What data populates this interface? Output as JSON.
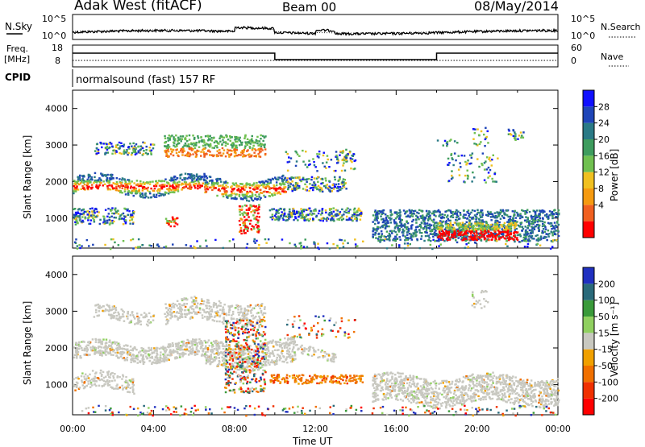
{
  "header": {
    "station": "Adak West (fitACF)",
    "beam": "Beam 00",
    "date": "08/May/2014"
  },
  "panels": {
    "nsky_label": "N.Sky",
    "nsearch_label": "N.Search",
    "freq_label": "Freq.",
    "freq_unit": "[MHz]",
    "nave_label": "Nave",
    "cpid_label": "CPID",
    "cpid_value": "normalsound (fast) 157 RF",
    "noise_ticks": [
      "10^5",
      "10^0"
    ],
    "noise_ticks_right": [
      "10^5",
      "10^0"
    ],
    "freq_ticks": [
      "18",
      "8"
    ],
    "nave_ticks": [
      "60",
      "0"
    ]
  },
  "chart_data": [
    {
      "type": "heatmap",
      "title": "",
      "xlabel": "",
      "ylabel": "Slant Range [km]",
      "xlim": [
        "00:00",
        "24:00"
      ],
      "ylim": [
        180,
        4500
      ],
      "colorbar_label": "Power [dB]",
      "colorbar_ticks": [
        "28",
        "24",
        "20",
        "16",
        "12",
        "8",
        "4"
      ],
      "colors": [
        "#1010ff",
        "#1f45b8",
        "#2a7a86",
        "#3e9c5e",
        "#70c050",
        "#f0c020",
        "#f59a10",
        "#f06020",
        "#ff0000"
      ]
    },
    {
      "type": "heatmap",
      "title": "",
      "xlabel": "Time UT",
      "ylabel": "Slant Range [km]",
      "xlim": [
        "00:00",
        "24:00"
      ],
      "ylim": [
        180,
        4500
      ],
      "colorbar_label": "Velocity [m s⁻¹]",
      "colorbar_ticks": [
        "200",
        "100",
        "50",
        "15",
        "-15",
        "-50",
        "-100",
        "-200"
      ],
      "colors": [
        "#2030c0",
        "#2a6a7a",
        "#3a9a3a",
        "#90d060",
        "#c8c8c0",
        "#f0a000",
        "#f07000",
        "#f03000",
        "#ff0000"
      ]
    }
  ],
  "x_ticks": [
    "00:00",
    "04:00",
    "08:00",
    "12:00",
    "16:00",
    "20:00",
    "00:00"
  ],
  "y_ticks": [
    "4000",
    "3000",
    "2000",
    "1000"
  ]
}
